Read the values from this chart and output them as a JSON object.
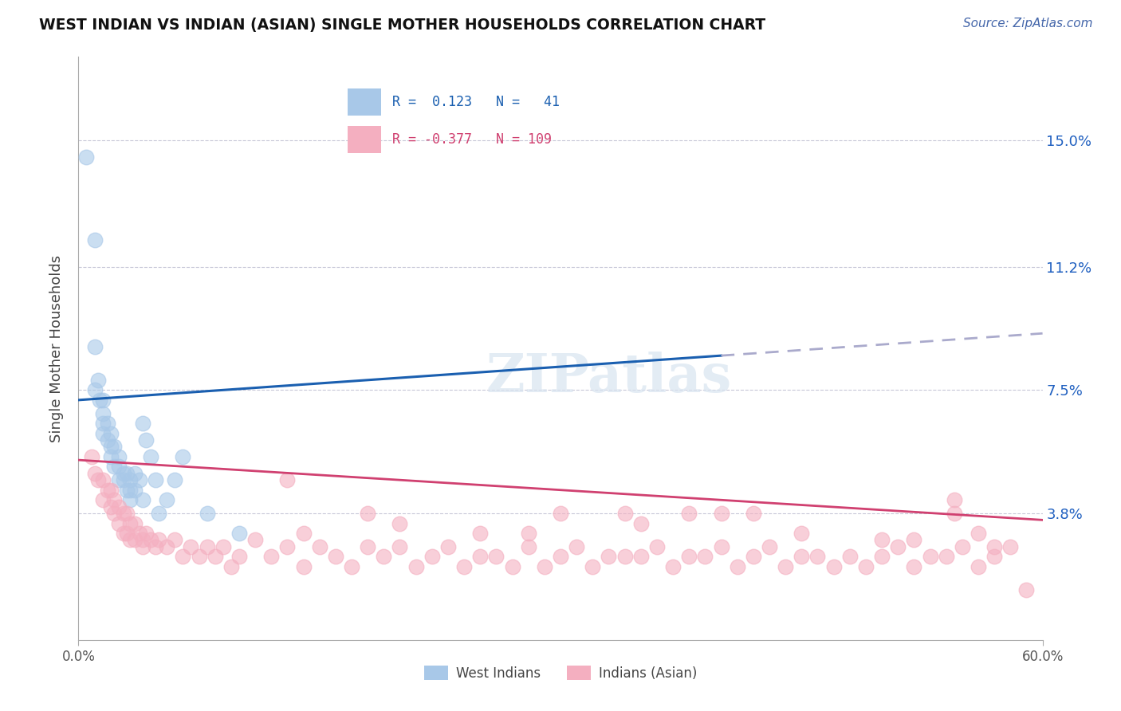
{
  "title": "WEST INDIAN VS INDIAN (ASIAN) SINGLE MOTHER HOUSEHOLDS CORRELATION CHART",
  "source": "Source: ZipAtlas.com",
  "ylabel": "Single Mother Households",
  "xlim": [
    0.0,
    0.6
  ],
  "ylim": [
    0.0,
    0.175
  ],
  "ytick_labels": [
    "",
    "3.8%",
    "7.5%",
    "11.2%",
    "15.0%"
  ],
  "ytick_values": [
    0.0,
    0.038,
    0.075,
    0.112,
    0.15
  ],
  "color_blue": "#a8c8e8",
  "color_pink": "#f4afc0",
  "line_blue": "#1a5fb0",
  "line_pink": "#d04070",
  "line_dashed_color": "#aaaacc",
  "background_color": "#ffffff",
  "grid_color": "#c8c8d8",
  "west_indian_x": [
    0.005,
    0.01,
    0.01,
    0.01,
    0.012,
    0.013,
    0.015,
    0.015,
    0.015,
    0.015,
    0.018,
    0.018,
    0.02,
    0.02,
    0.02,
    0.022,
    0.022,
    0.025,
    0.025,
    0.025,
    0.028,
    0.028,
    0.03,
    0.03,
    0.032,
    0.032,
    0.032,
    0.035,
    0.035,
    0.038,
    0.04,
    0.04,
    0.042,
    0.045,
    0.048,
    0.05,
    0.055,
    0.06,
    0.065,
    0.08,
    0.1
  ],
  "west_indian_y": [
    0.145,
    0.12,
    0.088,
    0.075,
    0.078,
    0.072,
    0.072,
    0.068,
    0.065,
    0.062,
    0.065,
    0.06,
    0.062,
    0.058,
    0.055,
    0.058,
    0.052,
    0.055,
    0.052,
    0.048,
    0.05,
    0.048,
    0.05,
    0.045,
    0.048,
    0.045,
    0.042,
    0.05,
    0.045,
    0.048,
    0.042,
    0.065,
    0.06,
    0.055,
    0.048,
    0.038,
    0.042,
    0.048,
    0.055,
    0.038,
    0.032
  ],
  "indian_asian_x": [
    0.008,
    0.01,
    0.012,
    0.015,
    0.015,
    0.018,
    0.02,
    0.02,
    0.022,
    0.022,
    0.025,
    0.025,
    0.028,
    0.028,
    0.03,
    0.03,
    0.032,
    0.032,
    0.035,
    0.035,
    0.038,
    0.04,
    0.04,
    0.042,
    0.045,
    0.048,
    0.05,
    0.055,
    0.06,
    0.065,
    0.07,
    0.075,
    0.08,
    0.085,
    0.09,
    0.095,
    0.1,
    0.11,
    0.12,
    0.13,
    0.14,
    0.15,
    0.16,
    0.17,
    0.18,
    0.19,
    0.2,
    0.21,
    0.22,
    0.23,
    0.24,
    0.25,
    0.26,
    0.27,
    0.28,
    0.29,
    0.3,
    0.31,
    0.32,
    0.33,
    0.34,
    0.35,
    0.36,
    0.37,
    0.38,
    0.39,
    0.4,
    0.41,
    0.42,
    0.43,
    0.44,
    0.45,
    0.46,
    0.47,
    0.48,
    0.49,
    0.5,
    0.51,
    0.52,
    0.53,
    0.54,
    0.55,
    0.56,
    0.57,
    0.58,
    0.59,
    0.14,
    0.2,
    0.25,
    0.3,
    0.35,
    0.4,
    0.45,
    0.5,
    0.545,
    0.56,
    0.57,
    0.545,
    0.52,
    0.38,
    0.42,
    0.34,
    0.28,
    0.18,
    0.13
  ],
  "indian_asian_y": [
    0.055,
    0.05,
    0.048,
    0.048,
    0.042,
    0.045,
    0.045,
    0.04,
    0.042,
    0.038,
    0.04,
    0.035,
    0.038,
    0.032,
    0.038,
    0.032,
    0.035,
    0.03,
    0.035,
    0.03,
    0.032,
    0.03,
    0.028,
    0.032,
    0.03,
    0.028,
    0.03,
    0.028,
    0.03,
    0.025,
    0.028,
    0.025,
    0.028,
    0.025,
    0.028,
    0.022,
    0.025,
    0.03,
    0.025,
    0.028,
    0.022,
    0.028,
    0.025,
    0.022,
    0.028,
    0.025,
    0.028,
    0.022,
    0.025,
    0.028,
    0.022,
    0.025,
    0.025,
    0.022,
    0.028,
    0.022,
    0.025,
    0.028,
    0.022,
    0.025,
    0.025,
    0.025,
    0.028,
    0.022,
    0.025,
    0.025,
    0.028,
    0.022,
    0.025,
    0.028,
    0.022,
    0.025,
    0.025,
    0.022,
    0.025,
    0.022,
    0.025,
    0.028,
    0.022,
    0.025,
    0.025,
    0.028,
    0.022,
    0.025,
    0.028,
    0.015,
    0.032,
    0.035,
    0.032,
    0.038,
    0.035,
    0.038,
    0.032,
    0.03,
    0.042,
    0.032,
    0.028,
    0.038,
    0.03,
    0.038,
    0.038,
    0.038,
    0.032,
    0.038,
    0.048
  ],
  "blue_line_solid_end": 0.4,
  "blue_line_dash_start": 0.4,
  "blue_line_start_y": 0.072,
  "blue_line_end_y": 0.092,
  "pink_line_start_y": 0.054,
  "pink_line_end_y": 0.036
}
